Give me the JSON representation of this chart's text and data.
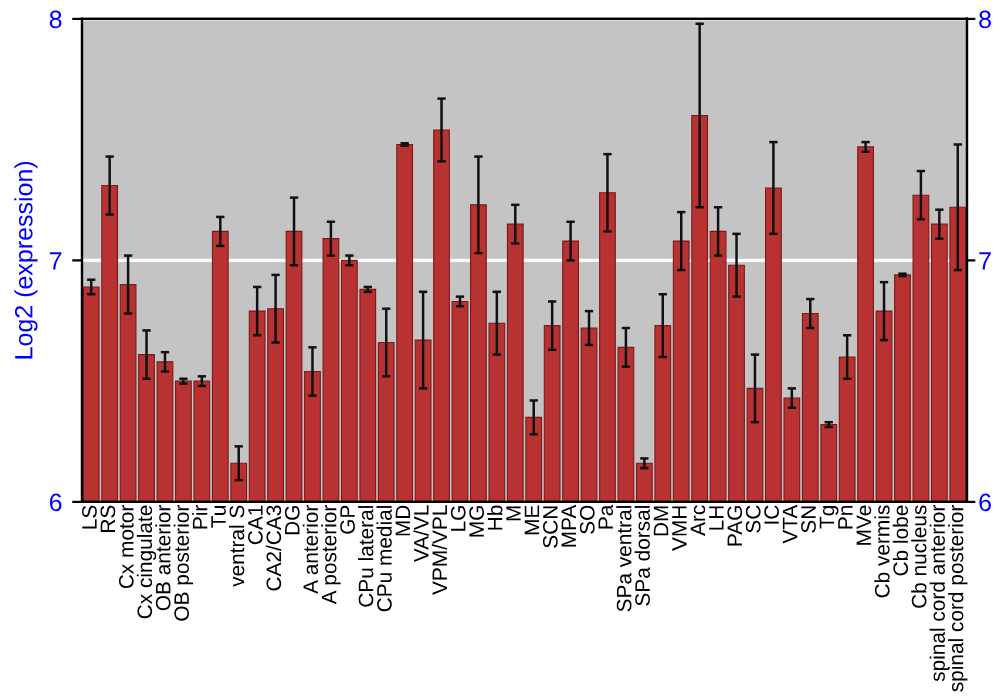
{
  "chart_data": {
    "type": "bar",
    "ylabel": "Log2 (expression)",
    "categories": [
      "LS",
      "RS",
      "Cx motor",
      "Cx cingulate",
      "OB anterior",
      "OB posterior",
      "Pir",
      "Tu",
      "ventral S",
      "CA1",
      "CA2/CA3",
      "DG",
      "A anterior",
      "A posterior",
      "GP",
      "CPu lateral",
      "CPu medial",
      "MD",
      "VA/VL",
      "VPM/VPL",
      "LG",
      "MG",
      "Hb",
      "M",
      "ME",
      "SCN",
      "MPA",
      "SO",
      "Pa",
      "SPa ventral",
      "SPa dorsal",
      "DM",
      "VMH",
      "Arc",
      "LH",
      "PAG",
      "SC",
      "IC",
      "VTA",
      "SN",
      "Tg",
      "Pn",
      "MVe",
      "Cb vermis",
      "Cb lobe",
      "Cb nucleus",
      "spinal cord anterior",
      "spinal cord posterior"
    ],
    "series": [
      {
        "color": "#b83232",
        "values": [
          6.89,
          7.31,
          6.9,
          6.61,
          6.58,
          6.5,
          6.5,
          7.12,
          6.16,
          6.79,
          6.8,
          7.12,
          6.54,
          7.09,
          7.0,
          6.88,
          6.66,
          7.48,
          6.67,
          7.54,
          6.83,
          7.23,
          6.74,
          7.15,
          6.35,
          6.73,
          7.08,
          6.72,
          7.28,
          6.64,
          6.16,
          6.73,
          7.08,
          7.6,
          7.12,
          6.98,
          6.47,
          7.3,
          6.43,
          6.78,
          6.32,
          6.6,
          7.47,
          6.79,
          6.94,
          7.27,
          7.15,
          7.22
        ],
        "errors": [
          0.03,
          0.12,
          0.12,
          0.1,
          0.04,
          0.01,
          0.02,
          0.06,
          0.07,
          0.1,
          0.14,
          0.14,
          0.1,
          0.07,
          0.02,
          0.01,
          0.14,
          0.005,
          0.2,
          0.13,
          0.02,
          0.2,
          0.13,
          0.08,
          0.07,
          0.1,
          0.08,
          0.07,
          0.16,
          0.08,
          0.02,
          0.13,
          0.12,
          0.38,
          0.1,
          0.13,
          0.14,
          0.19,
          0.04,
          0.06,
          0.01,
          0.09,
          0.02,
          0.12,
          0.005,
          0.1,
          0.06,
          0.26
        ]
      }
    ],
    "ylim": [
      6,
      8
    ],
    "yticks": [
      6,
      7,
      8
    ],
    "y2lim": [
      6,
      8
    ],
    "y2ticks": [
      6,
      7,
      8
    ],
    "grid": "y"
  }
}
